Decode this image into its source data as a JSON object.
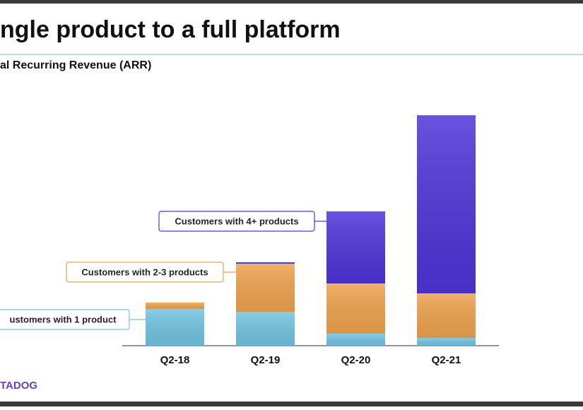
{
  "chart_data": {
    "type": "stacked_bar",
    "title": "ngle product to a full platform",
    "subtitle": "al Recurring Revenue (ARR)",
    "categories": [
      "Q2-18",
      "Q2-19",
      "Q2-20",
      "Q2-21"
    ],
    "series": [
      {
        "name": "ustomers with 1 product",
        "color": "#72c3e0",
        "values": [
          52,
          48,
          17,
          11
        ]
      },
      {
        "name": "Customers with 2-3 products",
        "color": "#eda24e",
        "values": [
          9,
          68,
          71,
          63
        ]
      },
      {
        "name": "Customers with 4+ products",
        "color": "#4f34d8",
        "values": [
          0,
          2,
          102,
          252
        ]
      }
    ],
    "logo": "TADOG"
  }
}
